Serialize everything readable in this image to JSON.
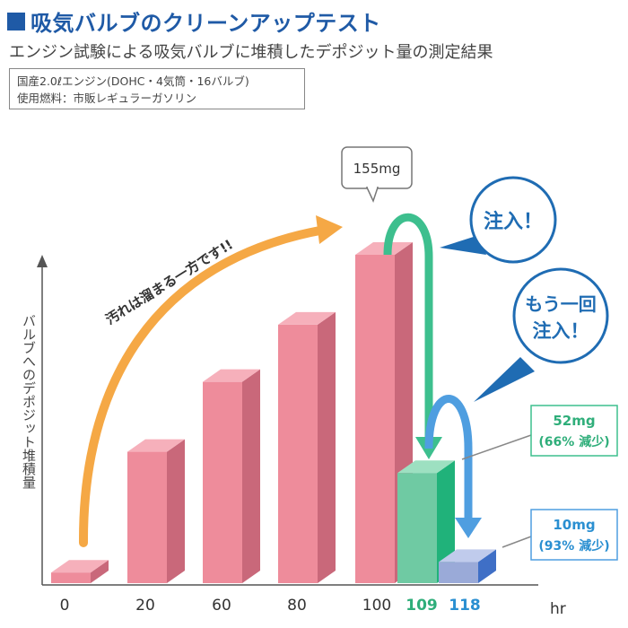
{
  "header": {
    "title": "吸気バルブのクリーンアップテスト",
    "subtitle": "エンジン試験による吸気バルブに堆積したデポジット量の測定結果"
  },
  "spec": {
    "line1": "国産2.0ℓエンジン(DOHC・4気筒・16バルブ)",
    "line2": "使用燃料：市販レギュラーガソリン"
  },
  "chart_data": {
    "type": "bar",
    "categories": [
      "0",
      "20",
      "60",
      "80",
      "100",
      "109",
      "118"
    ],
    "values": [
      5,
      62,
      95,
      122,
      155,
      52,
      10
    ],
    "xlabel": "hr",
    "ylabel": "バルブへのデポジット堆積量",
    "unit": "mg",
    "ylim": [
      0,
      170
    ],
    "grid": false,
    "colors": {
      "pink": "#ee8c9b",
      "green": "#6fcaa3",
      "blue": "#9aaad8",
      "arrow_orange": "#f5a845",
      "arrow_green": "#3dbf8e",
      "arrow_blue": "#4f9ee0",
      "callout_blue": "#1f6cb3"
    },
    "annotations": {
      "peak_label": "155mg",
      "growth_text": "汚れは溜まる一方です!!",
      "inject1": "注入！",
      "inject2_line1": "もう一回",
      "inject2_line2": "注入！",
      "result1_value": "52mg",
      "result1_note": "(66% 減少)",
      "result2_value": "10mg",
      "result2_note": "(93% 減少)"
    }
  }
}
